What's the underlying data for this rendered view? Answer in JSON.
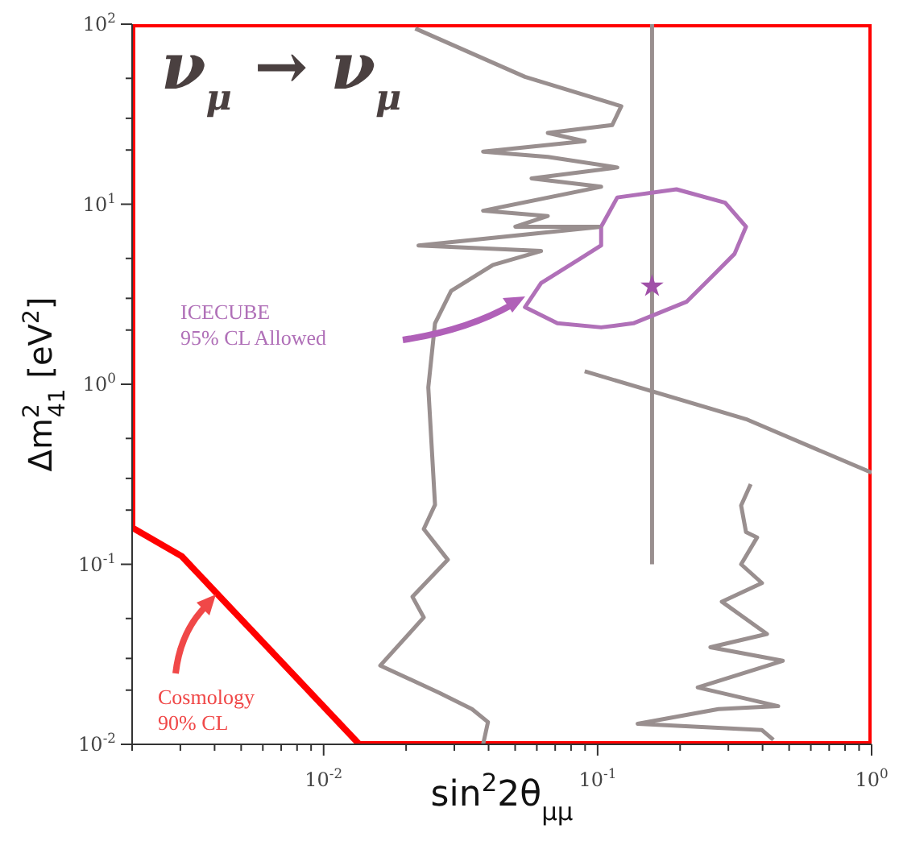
{
  "chart_data": {
    "type": "line",
    "title": "ν$_{μ}$ → ν$_{μ}$",
    "xlabel": "sin$^{2}$2θ$_{μμ}$",
    "ylabel": "Δm$^{2}$$_{41}$  [eV$^{2}$]",
    "log": "xy",
    "xlim": [
      0.002,
      1
    ],
    "ylim": [
      0.01,
      100
    ],
    "xticks": [
      {
        "value": 0.002,
        "label": null
      },
      {
        "value": 0.003,
        "label": null
      },
      {
        "value": 0.004,
        "label": null
      },
      {
        "value": 0.005,
        "label": null
      },
      {
        "value": 0.006,
        "label": null
      },
      {
        "value": 0.007,
        "label": null
      },
      {
        "value": 0.008,
        "label": null
      },
      {
        "value": 0.009,
        "label": null
      },
      {
        "value": 0.01,
        "label": "10$^{-2}$"
      },
      {
        "value": 0.02,
        "label": null
      },
      {
        "value": 0.03,
        "label": null
      },
      {
        "value": 0.04,
        "label": null
      },
      {
        "value": 0.05,
        "label": null
      },
      {
        "value": 0.06,
        "label": null
      },
      {
        "value": 0.07,
        "label": null
      },
      {
        "value": 0.08,
        "label": null
      },
      {
        "value": 0.09,
        "label": null
      },
      {
        "value": 0.1,
        "label": "10$^{-1}$"
      },
      {
        "value": 0.2,
        "label": null
      },
      {
        "value": 0.3,
        "label": null
      },
      {
        "value": 0.4,
        "label": null
      },
      {
        "value": 0.5,
        "label": null
      },
      {
        "value": 0.6,
        "label": null
      },
      {
        "value": 0.7,
        "label": null
      },
      {
        "value": 0.8,
        "label": null
      },
      {
        "value": 0.9,
        "label": null
      },
      {
        "value": 1,
        "label": "10$^{0}$"
      }
    ],
    "yticks": [
      {
        "value": 0.01,
        "label": "10$^{-2}$"
      },
      {
        "value": 0.02,
        "label": null
      },
      {
        "value": 0.03,
        "label": null
      },
      {
        "value": 0.05,
        "label": null
      },
      {
        "value": 0.1,
        "label": "10$^{-1}$"
      },
      {
        "value": 0.2,
        "label": null
      },
      {
        "value": 0.3,
        "label": null
      },
      {
        "value": 0.5,
        "label": null
      },
      {
        "value": 1,
        "label": "10$^{0}$"
      },
      {
        "value": 2,
        "label": null
      },
      {
        "value": 3,
        "label": null
      },
      {
        "value": 5,
        "label": null
      },
      {
        "value": 10,
        "label": "10$^{1}$"
      },
      {
        "value": 20,
        "label": null
      },
      {
        "value": 30,
        "label": null
      },
      {
        "value": 50,
        "label": null
      },
      {
        "value": 100,
        "label": "10$^{2}$"
      }
    ],
    "series": [
      {
        "color": "#ff0000",
        "x": [
          0.0135,
          0.00303,
          0.002,
          0.002,
          1,
          1
        ],
        "values": [
          0.01,
          0.111,
          0.16,
          100,
          100,
          0.01
        ]
      },
      {
        "color": "#ff0000",
        "x": [
          0.0135,
          1
        ],
        "values": [
          0.01,
          0.01
        ]
      },
      {
        "color": "#998f8f",
        "x": [
          0.0216,
          0.0543,
          0.122,
          0.113,
          0.0658,
          0.0897,
          0.0382,
          0.0658,
          0.118,
          0.0574,
          0.103,
          0.0382,
          0.0658,
          0.0501,
          0.103,
          0.0222,
          0.0622,
          0.0415,
          0.0292,
          0.0255,
          0.0241,
          0.0255,
          0.0232,
          0.0284,
          0.0211,
          0.0232,
          0.0161,
          0.0265,
          0.0348,
          0.0398,
          0.0382
        ],
        "values": [
          94.6,
          51,
          35,
          27.5,
          24.9,
          22.4,
          19.6,
          18.3,
          16,
          13.9,
          12.5,
          9.2,
          8.6,
          7.5,
          7.5,
          5.9,
          5.5,
          4.6,
          3.3,
          2.18,
          0.96,
          0.214,
          0.157,
          0.106,
          0.066,
          0.0507,
          0.0274,
          0.0193,
          0.0157,
          0.0133,
          0.01
        ]
      },
      {
        "color": "#998f8f",
        "x": [
          0.362,
          0.334,
          0.348,
          0.382,
          0.334,
          0.398,
          0.284,
          0.415,
          0.258,
          0.474,
          0.232,
          0.456,
          0.276,
          0.14,
          0.398,
          0.438
        ],
        "values": [
          0.279,
          0.212,
          0.151,
          0.141,
          0.1,
          0.0787,
          0.062,
          0.041,
          0.0346,
          0.0291,
          0.0207,
          0.0163,
          0.0157,
          0.013,
          0.012,
          0.0106
        ]
      },
      {
        "color": "#998f8f",
        "x": [
          0.0897,
          0.348,
          1
        ],
        "values": [
          1.18,
          0.64,
          0.323
        ]
      },
      {
        "color": "#998f8f",
        "x": [
          0.158,
          0.158
        ],
        "values": [
          100,
          0.1
        ]
      },
      {
        "color": "#b070b8",
        "x": [
          0.103,
          0.118,
          0.194,
          0.292,
          0.348,
          0.316,
          0.265,
          0.211,
          0.135,
          0.103,
          0.0713,
          0.0543,
          0.0622,
          0.0861,
          0.103,
          0.103
        ],
        "values": [
          7.5,
          10.9,
          12.1,
          10.2,
          7.5,
          5.3,
          4.05,
          2.87,
          2.18,
          2.07,
          2.18,
          2.68,
          3.65,
          4.97,
          5.9,
          7.4
        ]
      },
      {
        "type": "scatter",
        "marker": "star",
        "color": "#a050a8",
        "x": [
          0.158
        ],
        "values": [
          3.5
        ]
      }
    ],
    "annotations": [
      "ICECUBE\n95% CL Allowed",
      "Cosmology\n90% CL"
    ]
  }
}
